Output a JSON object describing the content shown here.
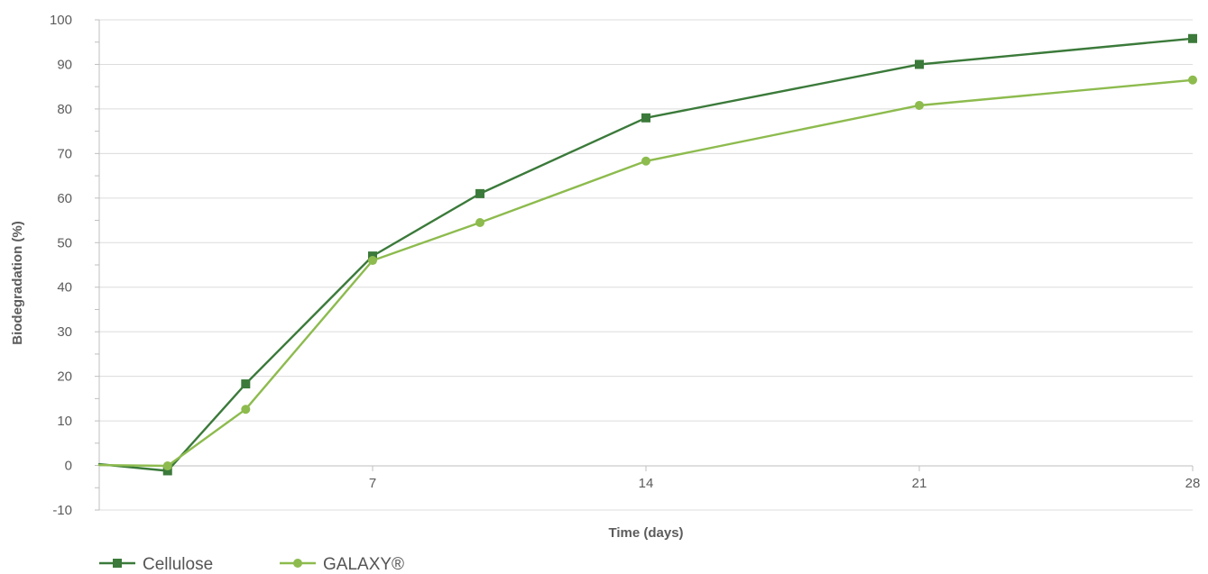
{
  "chart_data": {
    "type": "line",
    "title": "",
    "xlabel": "Time (days)",
    "ylabel": "Biodegradation (%)",
    "xlim": [
      0,
      28
    ],
    "ylim": [
      -10,
      100
    ],
    "xticks": [
      7,
      14,
      21,
      28
    ],
    "xtick_labels": [
      "7",
      "14",
      "21",
      "28"
    ],
    "yticks": [
      -10,
      0,
      10,
      20,
      30,
      40,
      50,
      60,
      70,
      80,
      90,
      100
    ],
    "ytick_labels": [
      "-10",
      "0",
      "10",
      "20",
      "30",
      "40",
      "50",
      "60",
      "70",
      "80",
      "90",
      "100"
    ],
    "grid": "horizontal",
    "legend_position": "bottom-left",
    "series": [
      {
        "name": "Cellulose",
        "color": "#3b7a3a",
        "marker": "square",
        "x": [
          0,
          1.75,
          3.75,
          7,
          9.75,
          14,
          21,
          28
        ],
        "y": [
          0.3,
          -1.2,
          18.3,
          47,
          61,
          78,
          90,
          95.8
        ]
      },
      {
        "name": "GALAXY®",
        "color": "#8dbb4e",
        "marker": "circle",
        "x": [
          0,
          1.75,
          3.75,
          7,
          9.75,
          14,
          21,
          28
        ],
        "y": [
          0.1,
          -0.1,
          12.6,
          46,
          54.5,
          68.3,
          80.8,
          86.5
        ]
      }
    ]
  }
}
